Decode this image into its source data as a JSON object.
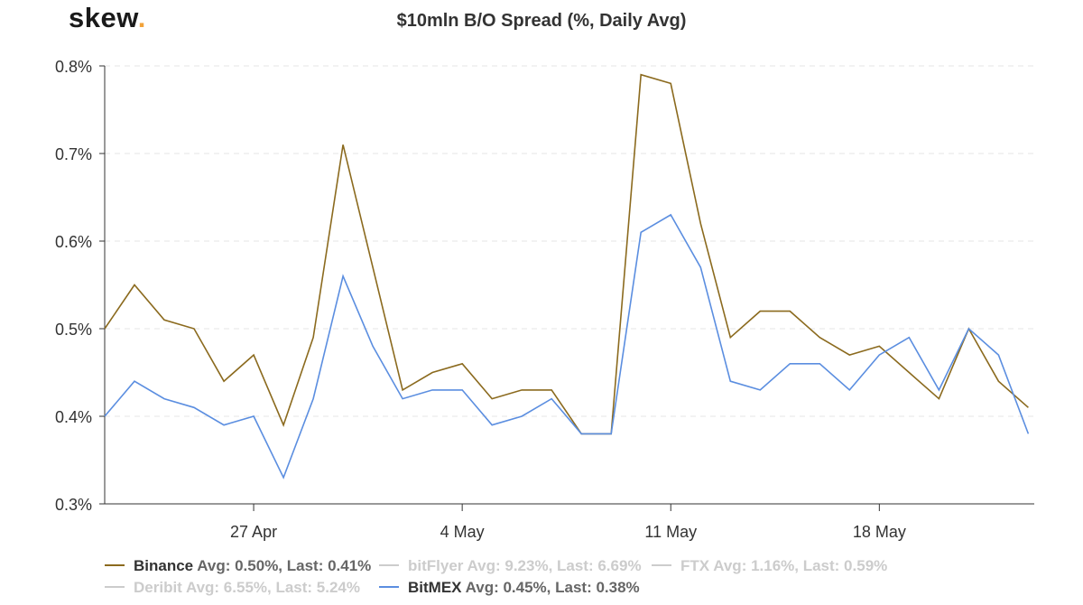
{
  "logo": {
    "text": "skew",
    "dot": "."
  },
  "colors": {
    "binance": "#8b6a1e",
    "bitmex": "#5b8ee0",
    "grid": "#e6e6e6",
    "axis": "#333333",
    "hidden": "#cccccc"
  },
  "chart_data": {
    "type": "line",
    "title": "$10mln B/O Spread (%, Daily Avg)",
    "xlabel": "",
    "ylabel": "",
    "ylim": [
      0.3,
      0.8
    ],
    "yticks": [
      "0.3%",
      "0.4%",
      "0.5%",
      "0.6%",
      "0.7%",
      "0.8%"
    ],
    "yticks_values": [
      0.3,
      0.4,
      0.5,
      0.6,
      0.7,
      0.8
    ],
    "x": [
      "2020-04-22",
      "2020-04-23",
      "2020-04-24",
      "2020-04-25",
      "2020-04-26",
      "2020-04-27",
      "2020-04-28",
      "2020-04-29",
      "2020-04-30",
      "2020-05-01",
      "2020-05-02",
      "2020-05-03",
      "2020-05-04",
      "2020-05-05",
      "2020-05-06",
      "2020-05-07",
      "2020-05-08",
      "2020-05-09",
      "2020-05-10",
      "2020-05-11",
      "2020-05-12",
      "2020-05-13",
      "2020-05-14",
      "2020-05-15",
      "2020-05-16",
      "2020-05-17",
      "2020-05-18",
      "2020-05-19",
      "2020-05-20",
      "2020-05-21",
      "2020-05-22",
      "2020-05-23"
    ],
    "xticks": [
      {
        "label": "27 Apr",
        "date": "2020-04-27"
      },
      {
        "label": "4 May",
        "date": "2020-05-04"
      },
      {
        "label": "11 May",
        "date": "2020-05-11"
      },
      {
        "label": "18 May",
        "date": "2020-05-18"
      }
    ],
    "grid": true,
    "legend_position": "bottom",
    "series": [
      {
        "name": "Binance",
        "stats": "Avg: 0.50%, Last: 0.41%",
        "visible": true,
        "values": [
          0.5,
          0.55,
          0.51,
          0.5,
          0.44,
          0.47,
          0.39,
          0.49,
          0.71,
          0.57,
          0.43,
          0.45,
          0.46,
          0.42,
          0.43,
          0.43,
          0.38,
          0.38,
          0.79,
          0.78,
          0.62,
          0.49,
          0.52,
          0.52,
          0.49,
          0.47,
          0.48,
          0.45,
          0.42,
          0.5,
          0.44,
          0.41
        ]
      },
      {
        "name": "bitFlyer",
        "stats": "Avg: 9.23%, Last: 6.69%",
        "visible": false
      },
      {
        "name": "FTX",
        "stats": "Avg: 1.16%, Last: 0.59%",
        "visible": false
      },
      {
        "name": "Deribit",
        "stats": "Avg: 6.55%, Last: 5.24%",
        "visible": false
      },
      {
        "name": "BitMEX",
        "stats": "Avg: 0.45%, Last: 0.38%",
        "visible": true,
        "values": [
          0.4,
          0.44,
          0.42,
          0.41,
          0.39,
          0.4,
          0.33,
          0.42,
          0.56,
          0.48,
          0.42,
          0.43,
          0.43,
          0.39,
          0.4,
          0.42,
          0.38,
          0.38,
          0.61,
          0.63,
          0.57,
          0.44,
          0.43,
          0.46,
          0.46,
          0.43,
          0.47,
          0.49,
          0.43,
          0.5,
          0.47,
          0.38
        ]
      }
    ]
  }
}
